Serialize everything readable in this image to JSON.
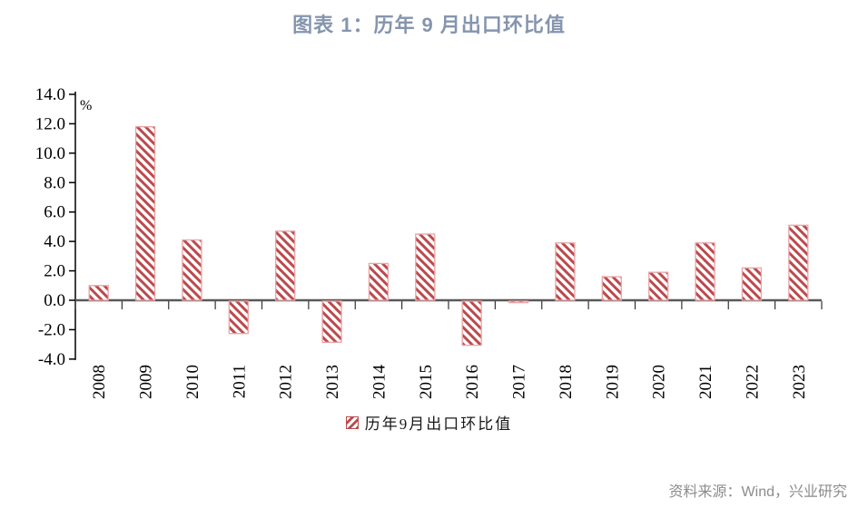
{
  "title": "图表 1：历年 9 月出口环比值",
  "legend": {
    "swatch": "diagonal-hatch-square",
    "label": "历年9月出口环比值"
  },
  "source": "资料来源：Wind，兴业研究",
  "colors": {
    "title": "#8595AF",
    "bar_stripe": "#BB4A4D",
    "bar_border": "#E9A4A6",
    "y_axis": "#000000",
    "zero_line": "#595959",
    "tick": "#333333",
    "source_text": "#8C8C8C"
  },
  "chart_data": {
    "type": "bar",
    "title": "图表 1：历年 9 月出口环比值",
    "categories": [
      "2008",
      "2009",
      "2010",
      "2011",
      "2012",
      "2013",
      "2014",
      "2015",
      "2016",
      "2017",
      "2018",
      "2019",
      "2020",
      "2021",
      "2022",
      "2023"
    ],
    "values": [
      1.0,
      11.8,
      4.1,
      -2.2,
      4.7,
      -2.8,
      2.5,
      4.5,
      -3.0,
      -0.1,
      3.9,
      1.6,
      1.9,
      3.9,
      2.2,
      5.1
    ],
    "series_name": "历年9月出口环比值",
    "xlabel": "",
    "ylabel": "%",
    "ylim": [
      -4.0,
      14.0
    ],
    "ytick_step": 2.0,
    "yticks": [
      "14.0",
      "12.0",
      "10.0",
      "8.0",
      "6.0",
      "4.0",
      "2.0",
      "0.0",
      "-2.0",
      "-4.0"
    ],
    "grid": false,
    "legend_position": "bottom",
    "bar_style": "diagonal-hatch",
    "x_label_rotation": -90
  }
}
